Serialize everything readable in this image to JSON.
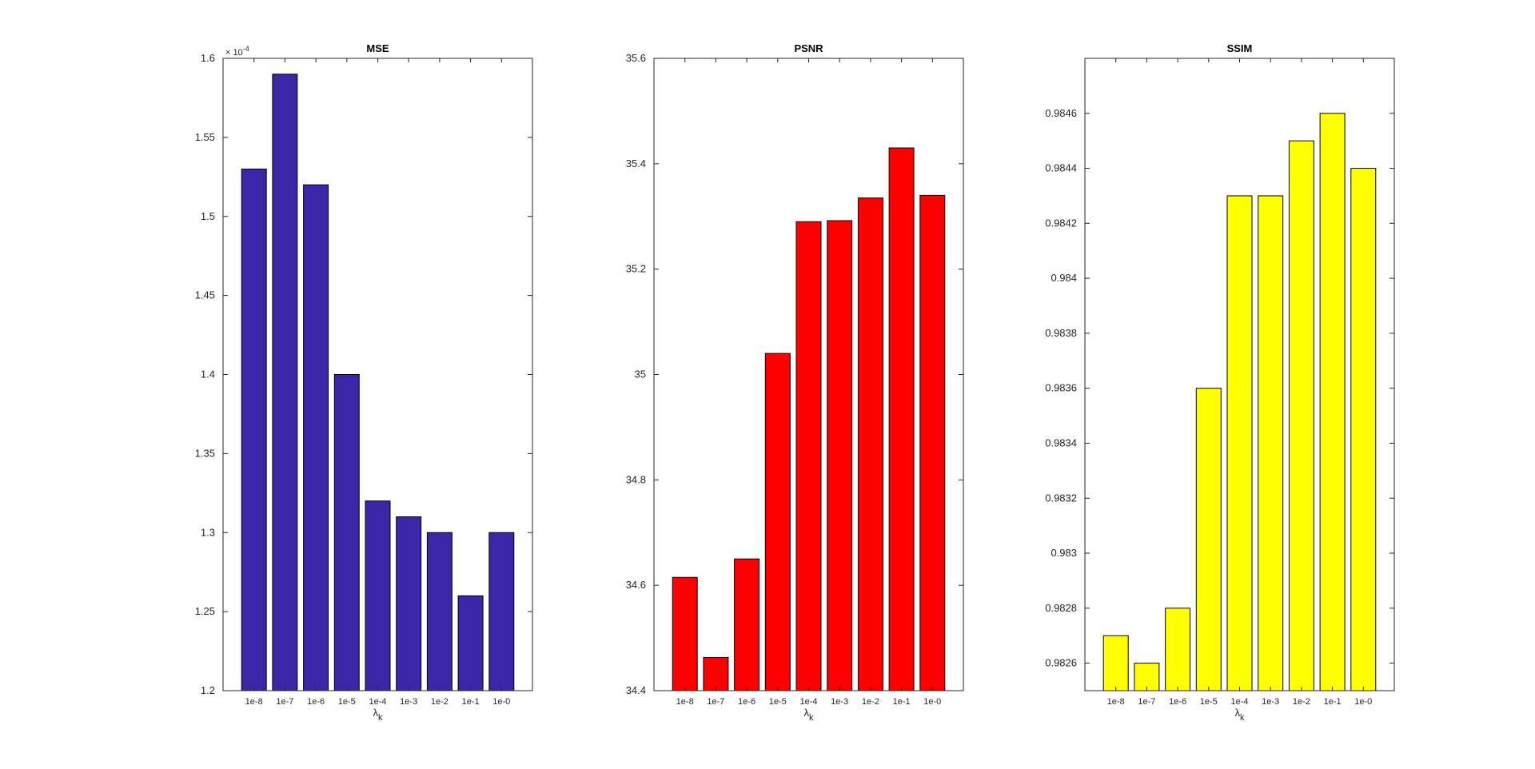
{
  "chart_data": [
    {
      "type": "bar",
      "title": "MSE",
      "xlabel": "λk",
      "ylabel": "",
      "exponent_label": "× 10-4",
      "categories": [
        "1e-8",
        "1e-7",
        "1e-6",
        "1e-5",
        "1e-4",
        "1e-3",
        "1e-2",
        "1e-1",
        "1e-0"
      ],
      "values": [
        1.53,
        1.59,
        1.52,
        1.4,
        1.32,
        1.31,
        1.3,
        1.26,
        1.3
      ],
      "ylim": [
        1.2,
        1.6
      ],
      "yticks": [
        "1.2",
        "1.25",
        "1.3",
        "1.35",
        "1.4",
        "1.45",
        "1.5",
        "1.55",
        "1.6"
      ],
      "color": "#3C26A8",
      "grid": false
    },
    {
      "type": "bar",
      "title": "PSNR",
      "xlabel": "λk",
      "ylabel": "",
      "categories": [
        "1e-8",
        "1e-7",
        "1e-6",
        "1e-5",
        "1e-4",
        "1e-3",
        "1e-2",
        "1e-1",
        "1e-0"
      ],
      "values": [
        34.615,
        34.463,
        34.65,
        35.04,
        35.29,
        35.292,
        35.335,
        35.43,
        35.34
      ],
      "ylim": [
        34.4,
        35.6
      ],
      "yticks": [
        "34.4",
        "34.6",
        "34.8",
        "35",
        "35.2",
        "35.4",
        "35.6"
      ],
      "color": "#FF0000",
      "grid": false
    },
    {
      "type": "bar",
      "title": "SSIM",
      "xlabel": "λk",
      "ylabel": "",
      "categories": [
        "1e-8",
        "1e-7",
        "1e-6",
        "1e-5",
        "1e-4",
        "1e-3",
        "1e-2",
        "1e-1",
        "1e-0"
      ],
      "values": [
        0.9827,
        0.9826,
        0.9828,
        0.9836,
        0.9843,
        0.9843,
        0.9845,
        0.9846,
        0.9844
      ],
      "ylim": [
        0.9825,
        0.9848
      ],
      "yticks": [
        "0.9826",
        "0.9828",
        "0.983",
        "0.9832",
        "0.9834",
        "0.9836",
        "0.9838",
        "0.984",
        "0.9842",
        "0.9844",
        "0.9846"
      ],
      "color": "#FFFF00",
      "grid": false
    }
  ]
}
